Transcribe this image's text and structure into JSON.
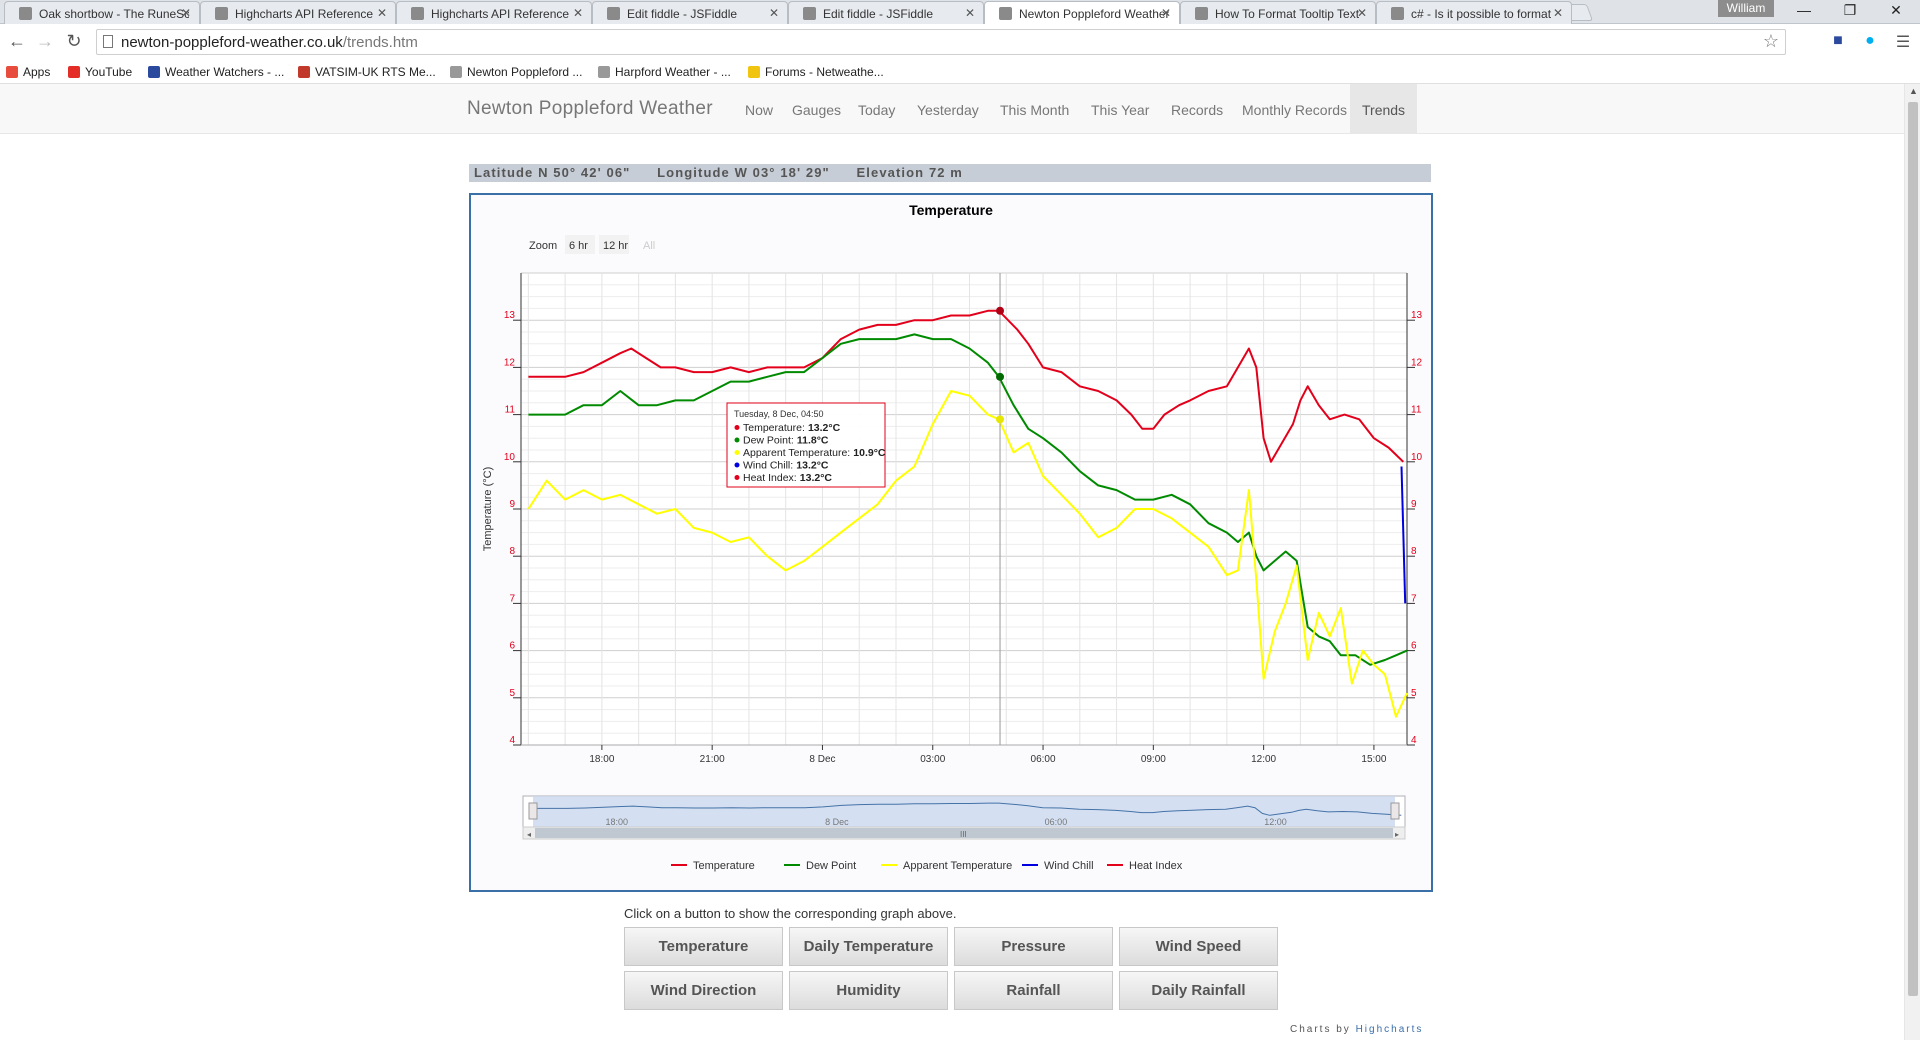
{
  "browser": {
    "tabs": [
      {
        "label": "Oak shortbow - The RuneScape Wiki",
        "active": false
      },
      {
        "label": "Highcharts API Reference",
        "active": false
      },
      {
        "label": "Highcharts API Reference",
        "active": false
      },
      {
        "label": "Edit fiddle - JSFiddle",
        "active": false
      },
      {
        "label": "Edit fiddle - JSFiddle",
        "active": false
      },
      {
        "label": "Newton Poppleford Weather",
        "active": true
      },
      {
        "label": "How To Format Tooltip Text",
        "active": false
      },
      {
        "label": "c# - Is it possible to format",
        "active": false
      }
    ],
    "user": "William",
    "url_domain": "newton-poppleford-weather.co.uk",
    "url_path": "/trends.htm",
    "bookmarks": [
      {
        "label": "Apps",
        "icon": "apps-grid-icon",
        "color": "#e74c3c"
      },
      {
        "label": "YouTube",
        "icon": "youtube-icon",
        "color": "#e52d27"
      },
      {
        "label": "Weather Watchers - ...",
        "icon": "weather-watchers-icon",
        "color": "#2b4a9e"
      },
      {
        "label": "VATSIM-UK RTS Me...",
        "icon": "vatsim-icon",
        "color": "#c0392b"
      },
      {
        "label": "Newton Poppleford ...",
        "icon": "page-icon",
        "color": "#999999"
      },
      {
        "label": "Harpford Weather - ...",
        "icon": "page-icon",
        "color": "#999999"
      },
      {
        "label": "Forums - Netweathe...",
        "icon": "netweather-icon",
        "color": "#f1c40f"
      }
    ]
  },
  "site": {
    "brand": "Newton Poppleford Weather",
    "nav": [
      "Now",
      "Gauges",
      "Today",
      "Yesterday",
      "This Month",
      "This Year",
      "Records",
      "Monthly Records",
      "Trends"
    ],
    "active_nav": "Trends",
    "location": {
      "latitude": "Latitude N 50° 42' 06\"",
      "longitude": "Longitude W 03° 18' 29\"",
      "elevation": "Elevation 72 m"
    },
    "instructions": "Click on a button to show the corresponding graph above.",
    "buttons": [
      "Temperature",
      "Daily Temperature",
      "Pressure",
      "Wind Speed",
      "Wind Direction",
      "Humidity",
      "Rainfall",
      "Daily Rainfall"
    ],
    "credits_prefix": "Charts by",
    "credits_link": "Highcharts"
  },
  "chart_data": {
    "type": "line",
    "title": "Temperature",
    "ylabel": "Temperature (°C)",
    "ylim": [
      4,
      14
    ],
    "yticks": [
      4,
      5,
      6,
      7,
      8,
      9,
      10,
      11,
      12,
      13
    ],
    "xlim_hours": [
      15.8,
      39.9
    ],
    "xticks": [
      {
        "t": 18,
        "label": "18:00"
      },
      {
        "t": 21,
        "label": "21:00"
      },
      {
        "t": 24,
        "label": "8 Dec"
      },
      {
        "t": 27,
        "label": "03:00"
      },
      {
        "t": 30,
        "label": "06:00"
      },
      {
        "t": 33,
        "label": "09:00"
      },
      {
        "t": 36,
        "label": "12:00"
      },
      {
        "t": 39,
        "label": "15:00"
      }
    ],
    "zoom": {
      "label": "Zoom",
      "buttons": [
        "6 hr",
        "12 hr",
        "All"
      ]
    },
    "navigator_labels": [
      "18:00",
      "8 Dec",
      "06:00",
      "12:00"
    ],
    "grid": true,
    "legend_position": "bottom-center",
    "series": [
      {
        "name": "Temperature",
        "color": "#e3001b",
        "points": [
          [
            16.0,
            11.8
          ],
          [
            16.5,
            11.8
          ],
          [
            17.0,
            11.8
          ],
          [
            17.5,
            11.9
          ],
          [
            18.0,
            12.1
          ],
          [
            18.5,
            12.3
          ],
          [
            18.8,
            12.4
          ],
          [
            19.2,
            12.2
          ],
          [
            19.6,
            12.0
          ],
          [
            20.0,
            12.0
          ],
          [
            20.5,
            11.9
          ],
          [
            21.0,
            11.9
          ],
          [
            21.5,
            12.0
          ],
          [
            22.0,
            11.9
          ],
          [
            22.5,
            12.0
          ],
          [
            23.0,
            12.0
          ],
          [
            23.5,
            12.0
          ],
          [
            24.0,
            12.2
          ],
          [
            24.5,
            12.6
          ],
          [
            25.0,
            12.8
          ],
          [
            25.5,
            12.9
          ],
          [
            26.0,
            12.9
          ],
          [
            26.5,
            13.0
          ],
          [
            27.0,
            13.0
          ],
          [
            27.5,
            13.1
          ],
          [
            28.0,
            13.1
          ],
          [
            28.5,
            13.2
          ],
          [
            28.8,
            13.2
          ],
          [
            29.3,
            12.8
          ],
          [
            29.6,
            12.5
          ],
          [
            30.0,
            12.0
          ],
          [
            30.5,
            11.9
          ],
          [
            31.0,
            11.6
          ],
          [
            31.5,
            11.5
          ],
          [
            32.0,
            11.3
          ],
          [
            32.4,
            11.0
          ],
          [
            32.7,
            10.7
          ],
          [
            33.0,
            10.7
          ],
          [
            33.3,
            11.0
          ],
          [
            33.7,
            11.2
          ],
          [
            34.0,
            11.3
          ],
          [
            34.5,
            11.5
          ],
          [
            35.0,
            11.6
          ],
          [
            35.3,
            12.0
          ],
          [
            35.6,
            12.4
          ],
          [
            35.8,
            12.0
          ],
          [
            36.0,
            10.5
          ],
          [
            36.2,
            10.0
          ],
          [
            36.5,
            10.4
          ],
          [
            36.8,
            10.8
          ],
          [
            37.0,
            11.3
          ],
          [
            37.2,
            11.6
          ],
          [
            37.5,
            11.2
          ],
          [
            37.8,
            10.9
          ],
          [
            38.2,
            11.0
          ],
          [
            38.6,
            10.9
          ],
          [
            39.0,
            10.5
          ],
          [
            39.4,
            10.3
          ],
          [
            39.8,
            10.0
          ]
        ]
      },
      {
        "name": "Dew Point",
        "color": "#008a00",
        "points": [
          [
            16.0,
            11.0
          ],
          [
            16.5,
            11.0
          ],
          [
            17.0,
            11.0
          ],
          [
            17.5,
            11.2
          ],
          [
            18.0,
            11.2
          ],
          [
            18.5,
            11.5
          ],
          [
            19.0,
            11.2
          ],
          [
            19.5,
            11.2
          ],
          [
            20.0,
            11.3
          ],
          [
            20.5,
            11.3
          ],
          [
            21.0,
            11.5
          ],
          [
            21.5,
            11.7
          ],
          [
            22.0,
            11.7
          ],
          [
            22.5,
            11.8
          ],
          [
            23.0,
            11.9
          ],
          [
            23.5,
            11.9
          ],
          [
            24.0,
            12.2
          ],
          [
            24.5,
            12.5
          ],
          [
            25.0,
            12.6
          ],
          [
            25.5,
            12.6
          ],
          [
            26.0,
            12.6
          ],
          [
            26.5,
            12.7
          ],
          [
            27.0,
            12.6
          ],
          [
            27.5,
            12.6
          ],
          [
            28.0,
            12.4
          ],
          [
            28.5,
            12.1
          ],
          [
            28.8,
            11.8
          ],
          [
            29.2,
            11.2
          ],
          [
            29.6,
            10.7
          ],
          [
            30.0,
            10.5
          ],
          [
            30.5,
            10.2
          ],
          [
            31.0,
            9.8
          ],
          [
            31.5,
            9.5
          ],
          [
            32.0,
            9.4
          ],
          [
            32.5,
            9.2
          ],
          [
            33.0,
            9.2
          ],
          [
            33.5,
            9.3
          ],
          [
            34.0,
            9.1
          ],
          [
            34.5,
            8.7
          ],
          [
            35.0,
            8.5
          ],
          [
            35.3,
            8.3
          ],
          [
            35.6,
            8.5
          ],
          [
            35.8,
            8.0
          ],
          [
            36.0,
            7.7
          ],
          [
            36.3,
            7.9
          ],
          [
            36.6,
            8.1
          ],
          [
            36.9,
            7.9
          ],
          [
            37.2,
            6.5
          ],
          [
            37.5,
            6.3
          ],
          [
            37.8,
            6.2
          ],
          [
            38.1,
            5.9
          ],
          [
            38.5,
            5.9
          ],
          [
            38.9,
            5.7
          ],
          [
            39.3,
            5.8
          ],
          [
            39.6,
            5.9
          ],
          [
            39.9,
            6.0
          ]
        ]
      },
      {
        "name": "Apparent Temperature",
        "color": "#ffff00",
        "points": [
          [
            16.0,
            9.0
          ],
          [
            16.5,
            9.6
          ],
          [
            17.0,
            9.2
          ],
          [
            17.5,
            9.4
          ],
          [
            18.0,
            9.2
          ],
          [
            18.5,
            9.3
          ],
          [
            19.0,
            9.1
          ],
          [
            19.5,
            8.9
          ],
          [
            20.0,
            9.0
          ],
          [
            20.5,
            8.6
          ],
          [
            21.0,
            8.5
          ],
          [
            21.5,
            8.3
          ],
          [
            22.0,
            8.4
          ],
          [
            22.5,
            8.0
          ],
          [
            23.0,
            7.7
          ],
          [
            23.5,
            7.9
          ],
          [
            24.0,
            8.2
          ],
          [
            24.5,
            8.5
          ],
          [
            25.0,
            8.8
          ],
          [
            25.5,
            9.1
          ],
          [
            26.0,
            9.6
          ],
          [
            26.5,
            9.9
          ],
          [
            27.0,
            10.8
          ],
          [
            27.5,
            11.5
          ],
          [
            28.0,
            11.4
          ],
          [
            28.5,
            11.0
          ],
          [
            28.8,
            10.9
          ],
          [
            29.2,
            10.2
          ],
          [
            29.6,
            10.4
          ],
          [
            30.0,
            9.7
          ],
          [
            30.5,
            9.3
          ],
          [
            31.0,
            8.9
          ],
          [
            31.5,
            8.4
          ],
          [
            32.0,
            8.6
          ],
          [
            32.5,
            9.0
          ],
          [
            33.0,
            9.0
          ],
          [
            33.5,
            8.8
          ],
          [
            34.0,
            8.5
          ],
          [
            34.5,
            8.2
          ],
          [
            35.0,
            7.6
          ],
          [
            35.3,
            7.7
          ],
          [
            35.6,
            9.4
          ],
          [
            35.8,
            7.5
          ],
          [
            36.0,
            5.4
          ],
          [
            36.3,
            6.4
          ],
          [
            36.6,
            7.0
          ],
          [
            36.9,
            7.8
          ],
          [
            37.2,
            5.8
          ],
          [
            37.5,
            6.8
          ],
          [
            37.8,
            6.3
          ],
          [
            38.1,
            6.9
          ],
          [
            38.4,
            5.3
          ],
          [
            38.7,
            6.0
          ],
          [
            39.0,
            5.7
          ],
          [
            39.3,
            5.5
          ],
          [
            39.6,
            4.6
          ],
          [
            39.9,
            5.1
          ]
        ]
      },
      {
        "name": "Wind Chill",
        "color": "#0000e0",
        "points": [
          [
            39.75,
            9.9
          ],
          [
            39.8,
            8.5
          ],
          [
            39.85,
            7.0
          ]
        ]
      },
      {
        "name": "Heat Index",
        "color": "#e3001b",
        "points": []
      }
    ],
    "tooltip": {
      "time_hours": 28.83,
      "header": "Tuesday, 8 Dec, 04:50",
      "lines": [
        {
          "name": "Temperature",
          "value": "13.2°C",
          "color": "#e3001b"
        },
        {
          "name": "Dew Point",
          "value": "11.8°C",
          "color": "#008a00"
        },
        {
          "name": "Apparent Temperature",
          "value": "10.9°C",
          "color": "#ffff00"
        },
        {
          "name": "Wind Chill",
          "value": "13.2°C",
          "color": "#0000e0"
        },
        {
          "name": "Heat Index",
          "value": "13.2°C",
          "color": "#e3001b"
        }
      ]
    }
  }
}
